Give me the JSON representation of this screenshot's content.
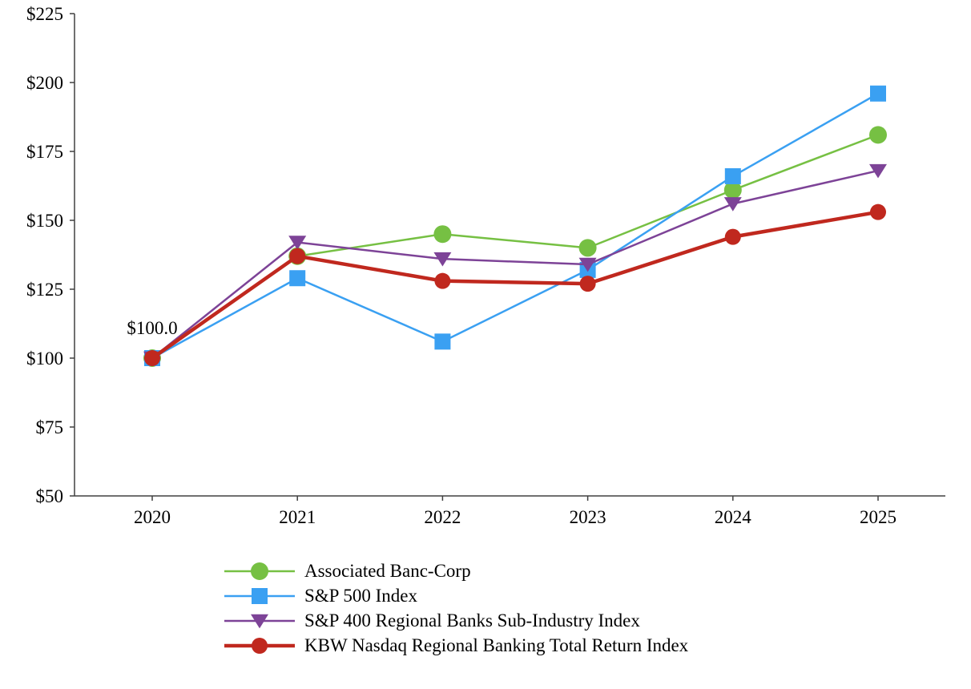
{
  "chart_data": {
    "type": "line",
    "title": "",
    "xlabel": "",
    "ylabel": "",
    "grid": false,
    "legend_position": "bottom-left",
    "categories": [
      "2020",
      "2021",
      "2022",
      "2023",
      "2024",
      "2025"
    ],
    "y_axis": {
      "min": 50,
      "max": 225,
      "tick_step": 25,
      "tick_prefix": "$",
      "tick_labels": [
        "$50",
        "$75",
        "$100",
        "$125",
        "$150",
        "$175",
        "$200",
        "$225"
      ]
    },
    "annotation": {
      "text": "$100.0",
      "x_index": 0,
      "value": 100
    },
    "series": [
      {
        "name": "Associated Banc-Corp",
        "color": "#76C043",
        "marker": "circle",
        "marker_size": 11,
        "line_width": 2.5,
        "values": [
          100,
          137,
          145,
          140,
          161,
          181
        ]
      },
      {
        "name": "S&P 500 Index",
        "color": "#3AA0F2",
        "marker": "square",
        "marker_size": 10,
        "line_width": 2.5,
        "values": [
          100,
          129,
          106,
          132,
          166,
          196
        ]
      },
      {
        "name": "S&P 400 Regional Banks Sub-Industry Index",
        "color": "#7D4397",
        "marker": "triangle-down",
        "marker_size": 11,
        "line_width": 2.5,
        "values": [
          100,
          142,
          136,
          134,
          156,
          168
        ]
      },
      {
        "name": "KBW Nasdaq Regional Banking Total Return Index",
        "color": "#C0281E",
        "marker": "circle",
        "marker_size": 10,
        "line_width": 4.5,
        "values": [
          100,
          137,
          128,
          127,
          144,
          153
        ]
      }
    ]
  },
  "axis_style": {
    "axis_color": "#404040",
    "text_color": "#000000"
  }
}
